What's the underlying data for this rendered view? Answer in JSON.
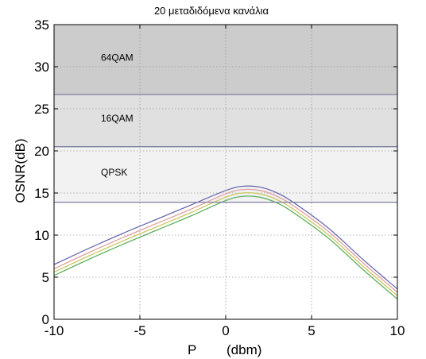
{
  "chart_data": {
    "type": "line",
    "title": "20 μεταδιδόμενα κανάλια",
    "xlabel_left": "P",
    "xlabel_right": "(dbm)",
    "ylabel": "OSNR(dB)",
    "xlim": [
      -10,
      10
    ],
    "ylim": [
      0,
      35
    ],
    "x_ticks": [
      -10,
      -5,
      0,
      5,
      10
    ],
    "y_ticks": [
      0,
      5,
      10,
      15,
      20,
      25,
      30,
      35
    ],
    "grid": true,
    "regions": [
      {
        "label": "64QAM",
        "y_from": 26.7,
        "y_to": 35,
        "color": "#cccccc"
      },
      {
        "label": "16QAM",
        "y_from": 20.5,
        "y_to": 26.7,
        "color": "#e0e0e0"
      },
      {
        "label": "QPSK",
        "y_from": 13.9,
        "y_to": 20.5,
        "color": "#f2f2f2"
      }
    ],
    "region_boundary_color": "#7d7fa0",
    "series": [
      {
        "color": "#6b6bb0",
        "x": [
          -10,
          -8,
          -6,
          -4,
          -2,
          0,
          1,
          2,
          3,
          4,
          6,
          8,
          10
        ],
        "y": [
          6.5,
          8.4,
          10.2,
          11.9,
          13.6,
          15.3,
          15.8,
          15.7,
          15.0,
          13.8,
          10.8,
          7.1,
          3.6
        ]
      },
      {
        "color": "#e0a0a0",
        "x": [
          -10,
          -8,
          -6,
          -4,
          -2,
          0,
          1,
          2,
          3,
          4,
          6,
          8,
          10
        ],
        "y": [
          6.0,
          7.9,
          9.7,
          11.4,
          13.1,
          14.9,
          15.4,
          15.3,
          14.6,
          13.4,
          10.4,
          6.7,
          3.2
        ]
      },
      {
        "color": "#c8c860",
        "x": [
          -10,
          -8,
          -6,
          -4,
          -2,
          0,
          1,
          2,
          3,
          4,
          6,
          8,
          10
        ],
        "y": [
          5.6,
          7.5,
          9.3,
          11.0,
          12.7,
          14.5,
          15.0,
          14.9,
          14.2,
          13.0,
          10.0,
          6.3,
          2.8
        ]
      },
      {
        "color": "#60b060",
        "x": [
          -10,
          -8,
          -6,
          -4,
          -2,
          0,
          1,
          2,
          3,
          4,
          6,
          8,
          10
        ],
        "y": [
          5.2,
          7.1,
          8.9,
          10.6,
          12.3,
          14.1,
          14.6,
          14.5,
          13.8,
          12.6,
          9.6,
          5.9,
          2.4
        ]
      }
    ]
  }
}
